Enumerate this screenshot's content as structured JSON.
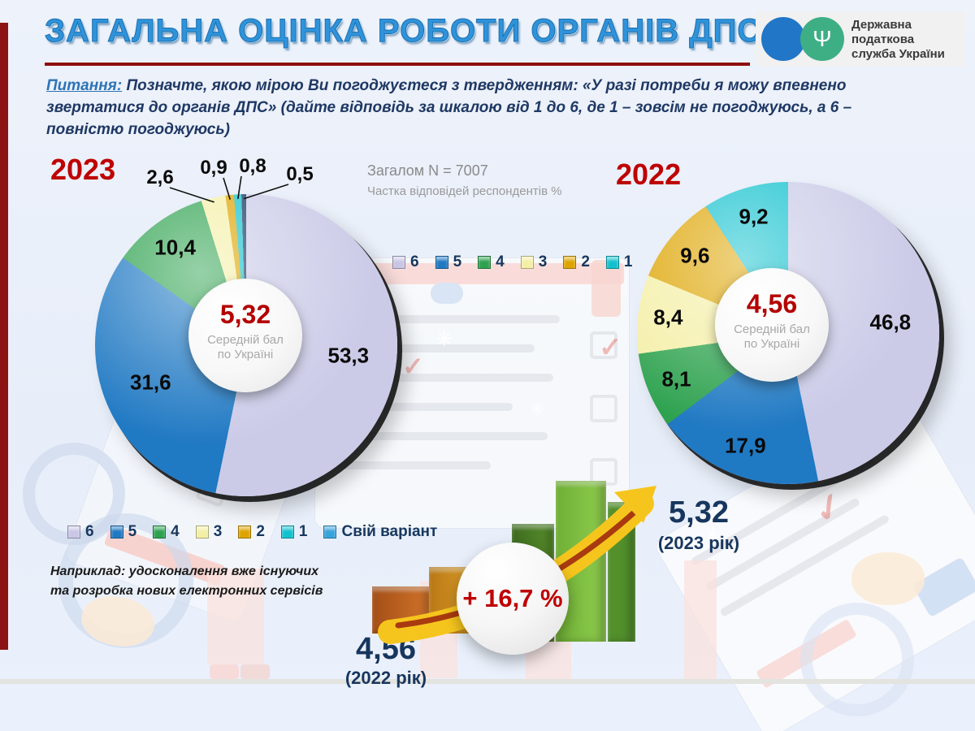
{
  "header": {
    "title": "ЗАГАЛЬНА ОЦІНКА РОБОТИ ОРГАНІВ ДПС",
    "logo": {
      "org_lines": [
        "Державна",
        "податкова",
        "служба України"
      ]
    }
  },
  "question": {
    "label": "Питання:",
    "text": " Позначте, якою мірою Ви погоджуєтеся з твердженням: «У разі потреби я можу впевнено звертатися до органів ДПС» (дайте відповідь за шкалою від 1 до 6, де 1 – зовсім не погоджуюсь, а 6 – повністю погоджуюсь)"
  },
  "survey_meta": {
    "total": "Загалом N = 7007",
    "unit": "Частка відповідей респондентів %"
  },
  "chart_data": [
    {
      "type": "pie",
      "year": "2023",
      "categories": [
        "6",
        "5",
        "4",
        "3",
        "2",
        "1",
        "Свій варіант"
      ],
      "values": [
        53.3,
        31.6,
        10.4,
        2.6,
        0.9,
        0.8,
        0.5
      ],
      "colors": [
        "#CBCBE8",
        "#2079C3",
        "#2EA24F",
        "#F4EFA6",
        "#DDA400",
        "#12C1CE",
        "#16365C"
      ],
      "center_value": "5,32",
      "center_label_line1": "Середній бал",
      "center_label_line2": "по Україні"
    },
    {
      "type": "pie",
      "year": "2022",
      "categories": [
        "6",
        "5",
        "4",
        "3",
        "2",
        "1"
      ],
      "values": [
        46.8,
        17.9,
        8.1,
        8.4,
        9.6,
        9.2
      ],
      "colors": [
        "#CBCBE8",
        "#2079C3",
        "#2EA24F",
        "#F4EFA6",
        "#DDA400",
        "#12C1CE"
      ],
      "center_value": "4,56",
      "center_label_line1": "Середній бал",
      "center_label_line2": "по Україні"
    }
  ],
  "legend_top": {
    "items": [
      {
        "label": "6",
        "color": "#C9C6E6"
      },
      {
        "label": "5",
        "color": "#2079C3"
      },
      {
        "label": "4",
        "color": "#2EA24F"
      },
      {
        "label": "3",
        "color": "#F4EFA6"
      },
      {
        "label": "2",
        "color": "#DDA400"
      },
      {
        "label": "1",
        "color": "#12C1CE"
      }
    ]
  },
  "legend_bottom": {
    "items": [
      {
        "label": "6",
        "color": "#C9C6E6"
      },
      {
        "label": "5",
        "color": "#2079C3"
      },
      {
        "label": "4",
        "color": "#2EA24F"
      },
      {
        "label": "3",
        "color": "#F4EFA6"
      },
      {
        "label": "2",
        "color": "#DDA400"
      },
      {
        "label": "1",
        "color": "#12C1CE"
      },
      {
        "label": "Свій варіант",
        "color": "#38A2DB"
      }
    ]
  },
  "note": {
    "line1": "Наприклад: удосконалення вже існуючих",
    "line2": "та розробка нових електронних сервісів"
  },
  "comparison": {
    "prev_value": "4,56",
    "prev_caption": "(2022 рік)",
    "curr_value": "5,32",
    "curr_caption": "(2023 рік)",
    "delta": "+ 16,7 %"
  }
}
